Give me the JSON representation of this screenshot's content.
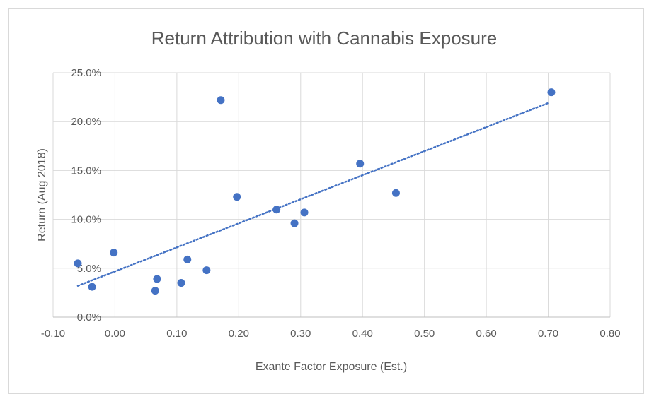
{
  "chart_data": {
    "type": "scatter",
    "title": "Return Attribution with Cannabis Exposure",
    "xlabel": "Exante Factor Exposure (Est.)",
    "ylabel": "Return (Aug 2018)",
    "xlim": [
      -0.1,
      0.8
    ],
    "ylim": [
      0,
      0.25
    ],
    "x_ticks": [
      -0.1,
      0.0,
      0.1,
      0.2,
      0.3,
      0.4,
      0.5,
      0.6,
      0.7,
      0.8
    ],
    "x_tick_labels": [
      "-0.10",
      "0.00",
      "0.10",
      "0.20",
      "0.30",
      "0.40",
      "0.50",
      "0.60",
      "0.70",
      "0.80"
    ],
    "y_ticks": [
      0,
      0.05,
      0.1,
      0.15,
      0.2,
      0.25
    ],
    "y_tick_labels": [
      "0.0%",
      "5.0%",
      "10.0%",
      "15.0%",
      "20.0%",
      "25.0%"
    ],
    "grid": true,
    "legend": "none",
    "point_color": "#4472c4",
    "trendline": {
      "type": "linear",
      "style": "dotted",
      "color": "#4472c4",
      "x_start": -0.06,
      "y_start": 0.032,
      "x_end": 0.7,
      "y_end": 0.219
    },
    "points": [
      {
        "x": -0.06,
        "y": 0.055
      },
      {
        "x": -0.037,
        "y": 0.031
      },
      {
        "x": -0.002,
        "y": 0.066
      },
      {
        "x": 0.065,
        "y": 0.027
      },
      {
        "x": 0.068,
        "y": 0.039
      },
      {
        "x": 0.107,
        "y": 0.035
      },
      {
        "x": 0.117,
        "y": 0.059
      },
      {
        "x": 0.148,
        "y": 0.048
      },
      {
        "x": 0.171,
        "y": 0.222
      },
      {
        "x": 0.197,
        "y": 0.123
      },
      {
        "x": 0.261,
        "y": 0.11
      },
      {
        "x": 0.29,
        "y": 0.096
      },
      {
        "x": 0.306,
        "y": 0.107
      },
      {
        "x": 0.396,
        "y": 0.157
      },
      {
        "x": 0.454,
        "y": 0.127
      },
      {
        "x": 0.705,
        "y": 0.23
      }
    ]
  }
}
